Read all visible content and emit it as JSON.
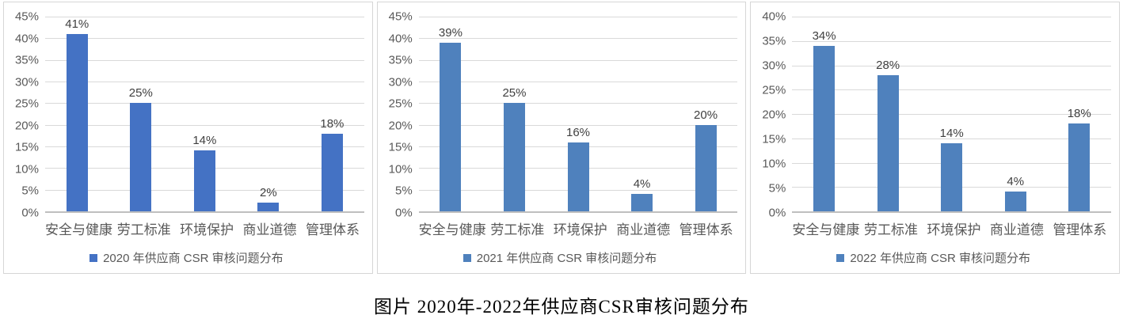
{
  "caption": "图片 2020年-2022年供应商CSR审核问题分布",
  "chart_data": [
    {
      "type": "bar",
      "categories": [
        "安全与健康",
        "劳工标准",
        "环境保护",
        "商业道德",
        "管理体系"
      ],
      "values": [
        41,
        25,
        14,
        2,
        18
      ],
      "value_labels": [
        "41%",
        "25%",
        "14%",
        "2%",
        "18%"
      ],
      "yticks": [
        "0%",
        "5%",
        "10%",
        "15%",
        "20%",
        "25%",
        "30%",
        "35%",
        "40%",
        "45%"
      ],
      "ylim": [
        0,
        45
      ],
      "legend": "2020 年供应商 CSR 审核问题分布",
      "bar_color": "#4472C4",
      "grid": "on",
      "legend_position": "bottom",
      "title": "",
      "xlabel": "",
      "ylabel": ""
    },
    {
      "type": "bar",
      "categories": [
        "安全与健康",
        "劳工标准",
        "环境保护",
        "商业道德",
        "管理体系"
      ],
      "values": [
        39,
        25,
        16,
        4,
        20
      ],
      "value_labels": [
        "39%",
        "25%",
        "16%",
        "4%",
        "20%"
      ],
      "yticks": [
        "0%",
        "5%",
        "10%",
        "15%",
        "20%",
        "25%",
        "30%",
        "35%",
        "40%",
        "45%"
      ],
      "ylim": [
        0,
        45
      ],
      "legend": "2021 年供应商 CSR 审核问题分布",
      "bar_color": "#4F81BD",
      "grid": "on",
      "legend_position": "bottom",
      "title": "",
      "xlabel": "",
      "ylabel": ""
    },
    {
      "type": "bar",
      "categories": [
        "安全与健康",
        "劳工标准",
        "环境保护",
        "商业道德",
        "管理体系"
      ],
      "values": [
        34,
        28,
        14,
        4,
        18
      ],
      "value_labels": [
        "34%",
        "28%",
        "14%",
        "4%",
        "18%"
      ],
      "yticks": [
        "0%",
        "5%",
        "10%",
        "15%",
        "20%",
        "25%",
        "30%",
        "35%",
        "40%"
      ],
      "ylim": [
        0,
        40
      ],
      "legend": "2022 年供应商 CSR 审核问题分布",
      "bar_color": "#4F81BD",
      "grid": "on",
      "legend_position": "bottom",
      "title": "",
      "xlabel": "",
      "ylabel": ""
    }
  ]
}
